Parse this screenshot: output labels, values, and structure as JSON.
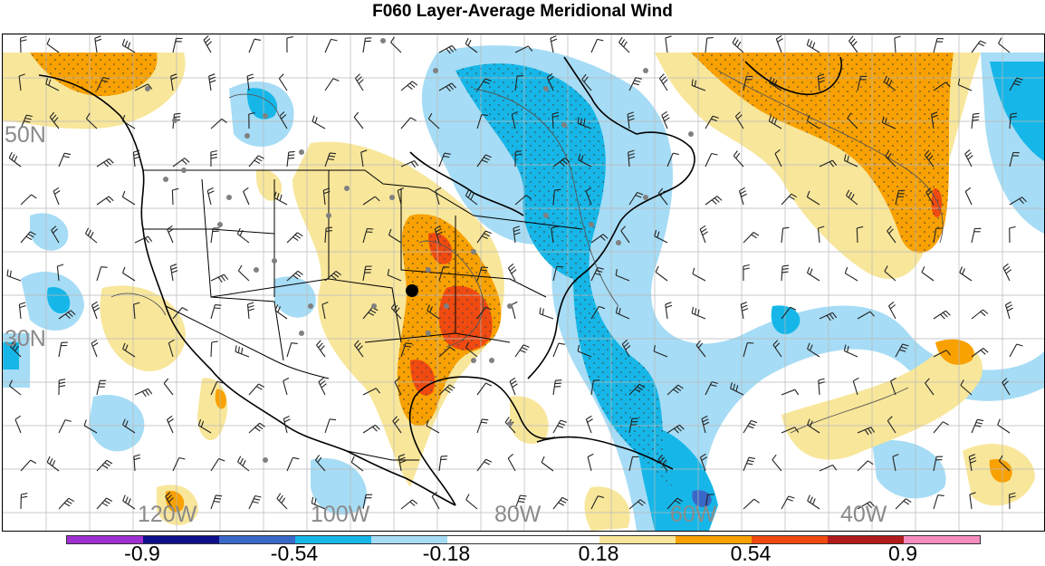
{
  "title": "F060 Layer-Average Meridional Wind",
  "latitude_labels": [
    "50N",
    "30N"
  ],
  "longitude_labels": [
    "120W",
    "100W",
    "80W",
    "60W",
    "40W"
  ],
  "colorbar": {
    "colors": [
      "#9e2fd0",
      "#0f0f8a",
      "#3a68c8",
      "#16b7e8",
      "#a6dcf5",
      "#ffffff",
      "#ffffff",
      "#f8e69a",
      "#f8a100",
      "#f04a10",
      "#b01a1a",
      "#f58cc0"
    ],
    "tick_labels": [
      "-0.9",
      "-0.54",
      "-0.18",
      "0.18",
      "0.54",
      "0.9"
    ]
  },
  "colors": {
    "positive_low": "#f8e69a",
    "positive_mid": "#f8a100",
    "positive_high": "#f04a10",
    "negative_low": "#a6dcf5",
    "negative_mid": "#16b7e8",
    "negative_high": "#3a68c8"
  }
}
